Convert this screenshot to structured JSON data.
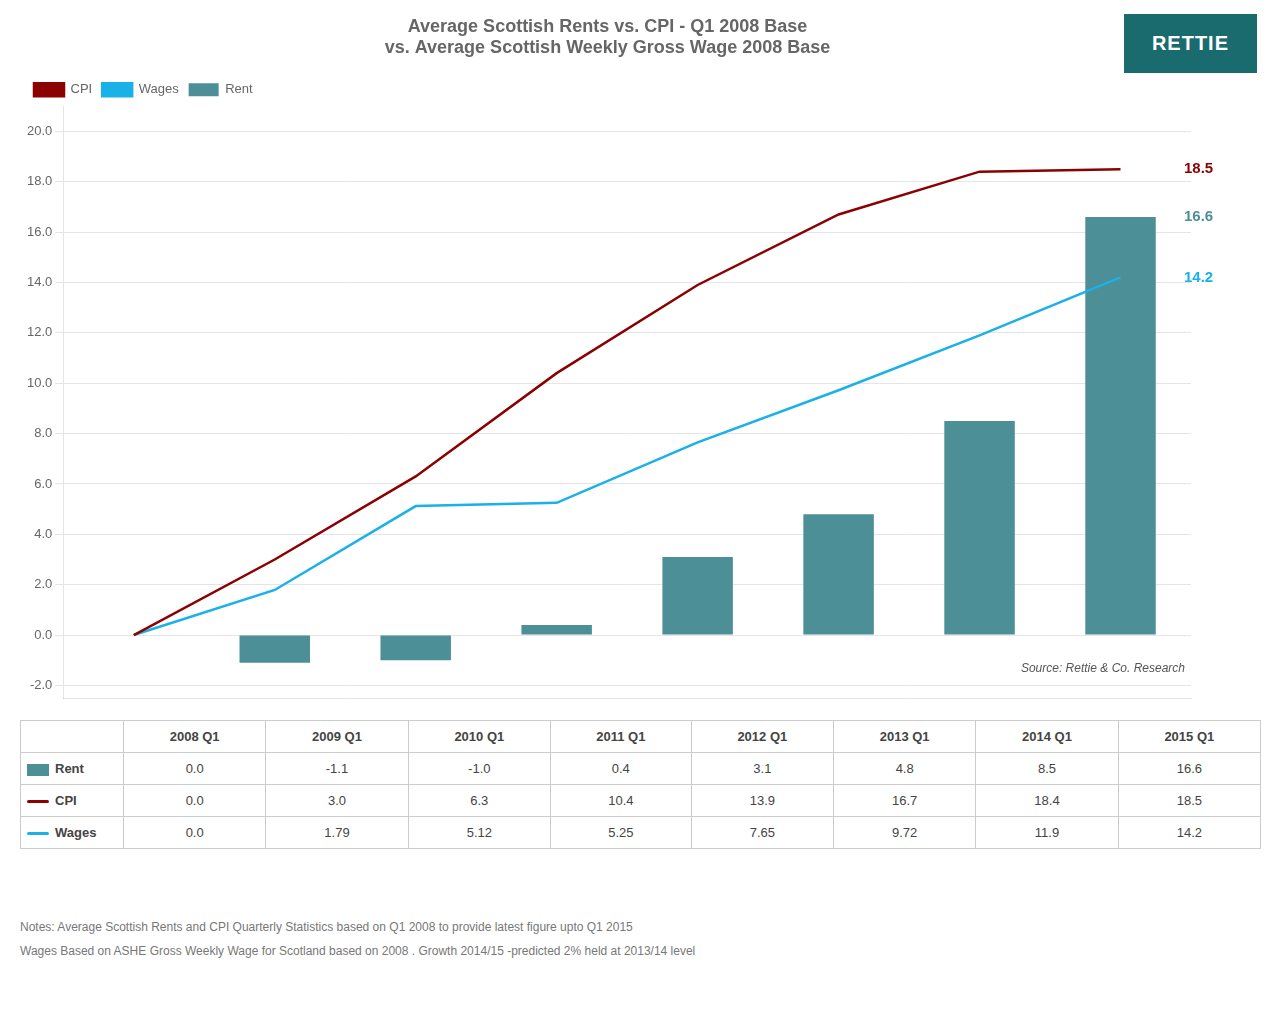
{
  "chart_data": {
    "type": "bar",
    "title": [
      "Average Scottish Rents vs. CPI - Q1 2008 Base",
      "vs. Average Scottish Weekly Gross Wage 2008 Base"
    ],
    "categories": [
      "2008 Q1",
      "2009 Q1",
      "2010 Q1",
      "2011 Q1",
      "2012 Q1",
      "2013 Q1",
      "2014 Q1",
      "2015 Q1"
    ],
    "series": [
      {
        "name": "Rent",
        "type": "bar",
        "color": "#4d8f96",
        "values": [
          0.0,
          -1.1,
          -1.0,
          0.4,
          3.1,
          4.8,
          8.5,
          16.6
        ],
        "value_labels": [
          "0.0",
          "-1.1",
          "-1.0",
          "0.4",
          "3.1",
          "4.8",
          "8.5",
          "16.6"
        ]
      },
      {
        "name": "CPI",
        "type": "line",
        "color": "#8b0000",
        "values": [
          0.0,
          3.0,
          6.3,
          10.4,
          13.9,
          16.7,
          18.4,
          18.5
        ],
        "value_labels": [
          "0.0",
          "3.0",
          "6.3",
          "10.4",
          "13.9",
          "16.7",
          "18.4",
          "18.5"
        ]
      },
      {
        "name": "Wages",
        "type": "line",
        "color": "#1ab0e8",
        "values": [
          0.0,
          1.79,
          5.12,
          5.25,
          7.65,
          9.72,
          11.9,
          14.2
        ],
        "value_labels": [
          "0.0",
          "1.79",
          "5.12",
          "5.25",
          "7.65",
          "9.72",
          "11.9",
          "14.2"
        ]
      }
    ],
    "ylim": [
      -2.5,
      21.0
    ],
    "yticks": [
      {
        "value": -2.0,
        "label": "-2.0"
      },
      {
        "value": 0.0,
        "label": "0.0"
      },
      {
        "value": 2.0,
        "label": "2.0"
      },
      {
        "value": 4.0,
        "label": "4.0"
      },
      {
        "value": 6.0,
        "label": "6.0"
      },
      {
        "value": 8.0,
        "label": "8.0"
      },
      {
        "value": 10.0,
        "label": "10.0"
      },
      {
        "value": 12.0,
        "label": "12.0"
      },
      {
        "value": 14.0,
        "label": "14.0"
      },
      {
        "value": 16.0,
        "label": "16.0"
      },
      {
        "value": 18.0,
        "label": "18.0"
      },
      {
        "value": 20.0,
        "label": "20.0"
      }
    ],
    "grid": true,
    "legend": "upper left",
    "tick_labels": "y",
    "source": "Source: Rettie & Co. Research",
    "logo_text": "RETTIE",
    "table_row_labels": [
      "Rent",
      "CPI",
      "Wages"
    ],
    "notes": [
      "Notes: Average Scottish Rents and CPI Quarterly Statistics based on Q1 2008 to provide latest figure upto Q1 2015",
      "Wages Based on ASHE Gross Weekly Wage for Scotland based on 2008 . Growth 2014/15 -predicted 2% held at 2013/14  level"
    ]
  }
}
